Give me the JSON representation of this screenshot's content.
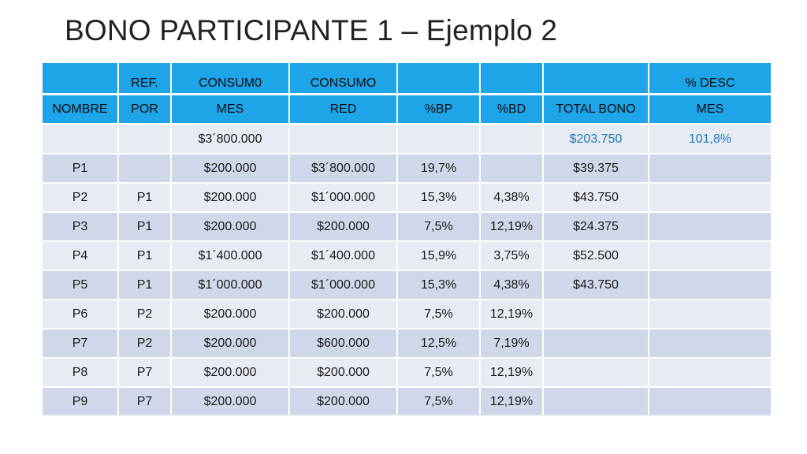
{
  "title": "BONO PARTICIPANTE 1 – Ejemplo 2",
  "colors": {
    "header_bg": "#1ea4e8",
    "row_light": "#e6ebf4",
    "row_dark": "#cfd7e8",
    "highlight_text": "#1f7ab7"
  },
  "table": {
    "header_row1": [
      "",
      "REF.",
      "CONSUM0",
      "CONSUMO",
      "",
      "",
      "",
      "% DESC"
    ],
    "header_row2": [
      "NOMBRE",
      "POR",
      "MES",
      "RED",
      "%BP",
      "%BD",
      "TOTAL BONO",
      "MES"
    ],
    "rows": [
      [
        "",
        "",
        "$3´800.000",
        "",
        "",
        "",
        "$203.750",
        "101,8%"
      ],
      [
        "P1",
        "",
        "$200.000",
        "$3´800.000",
        "19,7%",
        "",
        "$39.375",
        ""
      ],
      [
        "P2",
        "P1",
        "$200.000",
        "$1´000.000",
        "15,3%",
        "4,38%",
        "$43.750",
        ""
      ],
      [
        "P3",
        "P1",
        "$200.000",
        "$200.000",
        "7,5%",
        "12,19%",
        "$24.375",
        ""
      ],
      [
        "P4",
        "P1",
        "$1´400.000",
        "$1´400.000",
        "15,9%",
        "3,75%",
        "$52.500",
        ""
      ],
      [
        "P5",
        "P1",
        "$1´000.000",
        "$1´000.000",
        "15,3%",
        "4,38%",
        "$43.750",
        ""
      ],
      [
        "P6",
        "P2",
        "$200.000",
        "$200.000",
        "7,5%",
        "12,19%",
        "",
        ""
      ],
      [
        "P7",
        "P2",
        "$200.000",
        "$600.000",
        "12,5%",
        "7,19%",
        "",
        ""
      ],
      [
        "P8",
        "P7",
        "$200.000",
        "$200.000",
        "7,5%",
        "12,19%",
        "",
        ""
      ],
      [
        "P9",
        "P7",
        "$200.000",
        "$200.000",
        "7,5%",
        "12,19%",
        "",
        ""
      ]
    ]
  }
}
